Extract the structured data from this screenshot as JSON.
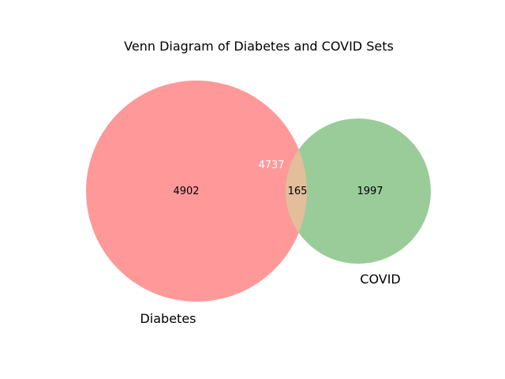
{
  "diagram": {
    "title": "Venn Diagram of Diabetes and COVID Sets",
    "sets": [
      {
        "name": "Diabetes",
        "color": "#ff9999"
      },
      {
        "name": "COVID",
        "color": "#99cc99"
      }
    ],
    "intersection_color": "#e2be9b",
    "regions": {
      "diabetes_only": "4902",
      "intersection": "165",
      "covid_only": "1997"
    },
    "overlay_label": "4737"
  }
}
